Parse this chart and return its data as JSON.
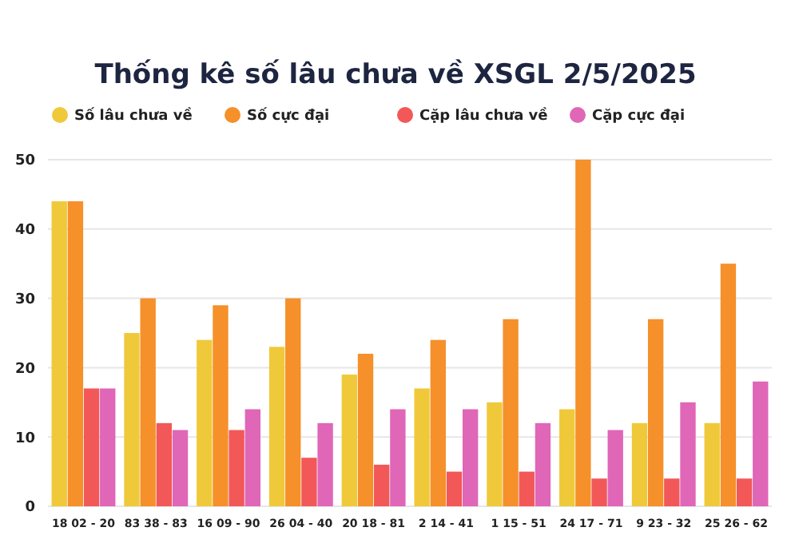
{
  "chart_data": {
    "type": "bar",
    "title": "Thống kê số lâu chưa về XSGL 2/5/2025",
    "categories": [
      "18 02 - 20",
      "83 38 - 83",
      "16 09 - 90",
      "26 04 - 40",
      "20 18 - 81",
      "2 14 - 41",
      "1 15 - 51",
      "24 17 - 71",
      "9 23 - 32",
      "25 26 - 62"
    ],
    "series": [
      {
        "name": "Số lâu chưa về",
        "color": "#f0c93a",
        "values": [
          44,
          25,
          24,
          23,
          19,
          17,
          15,
          14,
          12,
          12
        ]
      },
      {
        "name": "Số cực đại",
        "color": "#f5902a",
        "values": [
          44,
          30,
          29,
          30,
          22,
          24,
          27,
          50,
          27,
          35
        ]
      },
      {
        "name": "Cặp lâu chưa về",
        "color": "#f25858",
        "values": [
          17,
          12,
          11,
          7,
          6,
          5,
          5,
          4,
          4,
          4
        ]
      },
      {
        "name": "Cặp cực đại",
        "color": "#e066b8",
        "values": [
          17,
          11,
          14,
          12,
          14,
          14,
          12,
          11,
          15,
          18
        ]
      }
    ],
    "ylim": [
      0,
      50
    ],
    "yticks": [
      0,
      10,
      20,
      30,
      40,
      50
    ],
    "grid": "y",
    "legend": "top"
  }
}
